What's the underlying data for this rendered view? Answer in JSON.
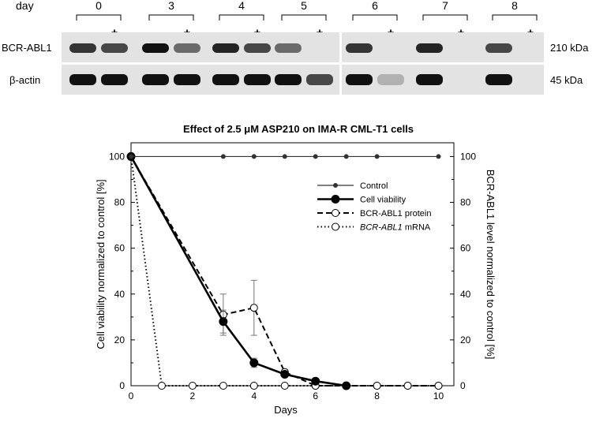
{
  "blot": {
    "day_label": "day",
    "days": [
      "0",
      "3",
      "4",
      "5",
      "6",
      "7",
      "8"
    ],
    "minus_sign": "-",
    "plus_sign": "+",
    "rows": [
      {
        "label": "BCR-ABL1",
        "size": "210 kDa",
        "intensity_minus": [
          0.8,
          1.0,
          0.9,
          0.5,
          0.8,
          0.9,
          0.7
        ],
        "intensity_plus": [
          0.7,
          0.5,
          0.7,
          0.0,
          0.0,
          0.0,
          0.0
        ]
      },
      {
        "label": "β-actin",
        "size": "45 kDa",
        "intensity_minus": [
          1.0,
          1.0,
          1.0,
          1.0,
          1.0,
          1.0,
          1.0
        ],
        "intensity_plus": [
          1.0,
          1.0,
          1.0,
          0.7,
          0.1,
          0.0,
          0.0
        ]
      }
    ]
  },
  "chart_data": {
    "type": "line",
    "title": "Effect of 2.5 μM ASP210 on IMA-R CML-T1 cells",
    "xlabel": "Days",
    "ylabel_left": "Cell viability normalized to control [%]",
    "ylabel_right": "BCR-ABL1 level normalized to control [%]",
    "xlim": [
      0,
      10.5
    ],
    "ylim": [
      0,
      106
    ],
    "x_ticks": [
      0,
      2,
      4,
      6,
      8,
      10
    ],
    "y_ticks": [
      0,
      20,
      40,
      60,
      80,
      100
    ],
    "grid": false,
    "legend_position": "top-right",
    "series": [
      {
        "name": "Control",
        "style": "solid-thin",
        "marker": "small-filled",
        "x": [
          0,
          3,
          4,
          5,
          6,
          7,
          8,
          10
        ],
        "y": [
          100,
          100,
          100,
          100,
          100,
          100,
          100,
          100
        ]
      },
      {
        "name": "Cell viability",
        "style": "solid-thick",
        "marker": "filled",
        "x": [
          0,
          3,
          4,
          5,
          6,
          7
        ],
        "y": [
          100,
          28,
          10,
          5,
          2,
          0
        ],
        "error": [
          0,
          5,
          2,
          1,
          0,
          0
        ]
      },
      {
        "name": "BCR-ABL1 protein",
        "style": "dashed",
        "marker": "open",
        "x": [
          0,
          3,
          4,
          5,
          6,
          7,
          8,
          9,
          10
        ],
        "y": [
          100,
          31,
          34,
          6,
          0,
          0,
          0,
          0,
          0
        ],
        "error": [
          0,
          9,
          12,
          1,
          0,
          0,
          0,
          0,
          0
        ]
      },
      {
        "name": "BCR-ABL1 mRNA",
        "name_italic": "BCR-ABL1",
        "name_rest": " mRNA",
        "style": "dotted",
        "marker": "open",
        "x": [
          0,
          1,
          2,
          3,
          4,
          5,
          6,
          7,
          8,
          9,
          10
        ],
        "y": [
          100,
          0,
          0,
          0,
          0,
          0,
          0,
          0,
          0,
          0,
          0
        ]
      }
    ]
  }
}
